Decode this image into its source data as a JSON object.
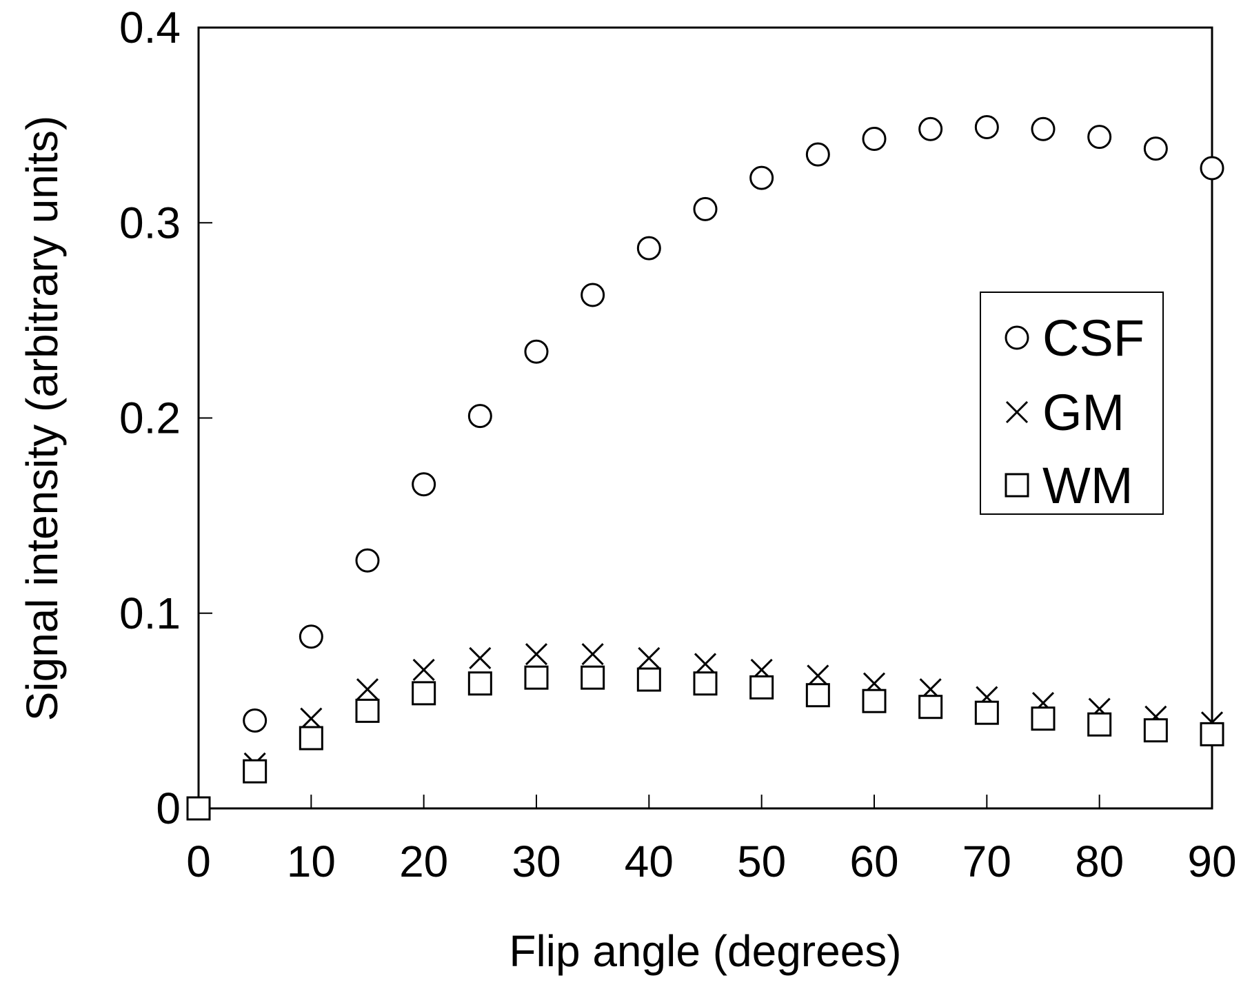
{
  "chart_data": {
    "type": "scatter",
    "title": "",
    "xlabel": "Flip angle (degrees)",
    "ylabel": "Signal intensity (arbitrary units)",
    "xlim": [
      0,
      90
    ],
    "ylim": [
      0,
      0.4
    ],
    "x_ticks": [
      0,
      10,
      20,
      30,
      40,
      50,
      60,
      70,
      80,
      90
    ],
    "x_tick_labels": [
      "0",
      "10",
      "20",
      "30",
      "40",
      "50",
      "60",
      "70",
      "80",
      "90"
    ],
    "y_ticks": [
      0,
      0.1,
      0.2,
      0.3,
      0.4
    ],
    "y_tick_labels": [
      "0",
      "0.1",
      "0.2",
      "0.3",
      "0.4"
    ],
    "grid": false,
    "legend_position": "right",
    "x": [
      0,
      5,
      10,
      15,
      20,
      25,
      30,
      35,
      40,
      45,
      50,
      55,
      60,
      65,
      70,
      75,
      80,
      85,
      90
    ],
    "series": [
      {
        "name": "CSF",
        "marker": "circle",
        "values": [
          0,
          0.045,
          0.088,
          0.127,
          0.166,
          0.201,
          0.234,
          0.263,
          0.287,
          0.307,
          0.323,
          0.335,
          0.343,
          0.348,
          0.349,
          0.348,
          0.344,
          0.338,
          0.328
        ]
      },
      {
        "name": "GM",
        "marker": "x",
        "values": [
          0,
          0.023,
          0.046,
          0.061,
          0.071,
          0.077,
          0.079,
          0.079,
          0.077,
          0.074,
          0.071,
          0.068,
          0.064,
          0.061,
          0.057,
          0.054,
          0.051,
          0.047,
          0.044
        ]
      },
      {
        "name": "WM",
        "marker": "square",
        "values": [
          0,
          0.019,
          0.036,
          0.05,
          0.059,
          0.064,
          0.067,
          0.067,
          0.066,
          0.064,
          0.062,
          0.058,
          0.055,
          0.052,
          0.049,
          0.046,
          0.043,
          0.04,
          0.038
        ]
      }
    ],
    "colors": {
      "marker_stroke": "#000000",
      "background": "#ffffff"
    }
  }
}
